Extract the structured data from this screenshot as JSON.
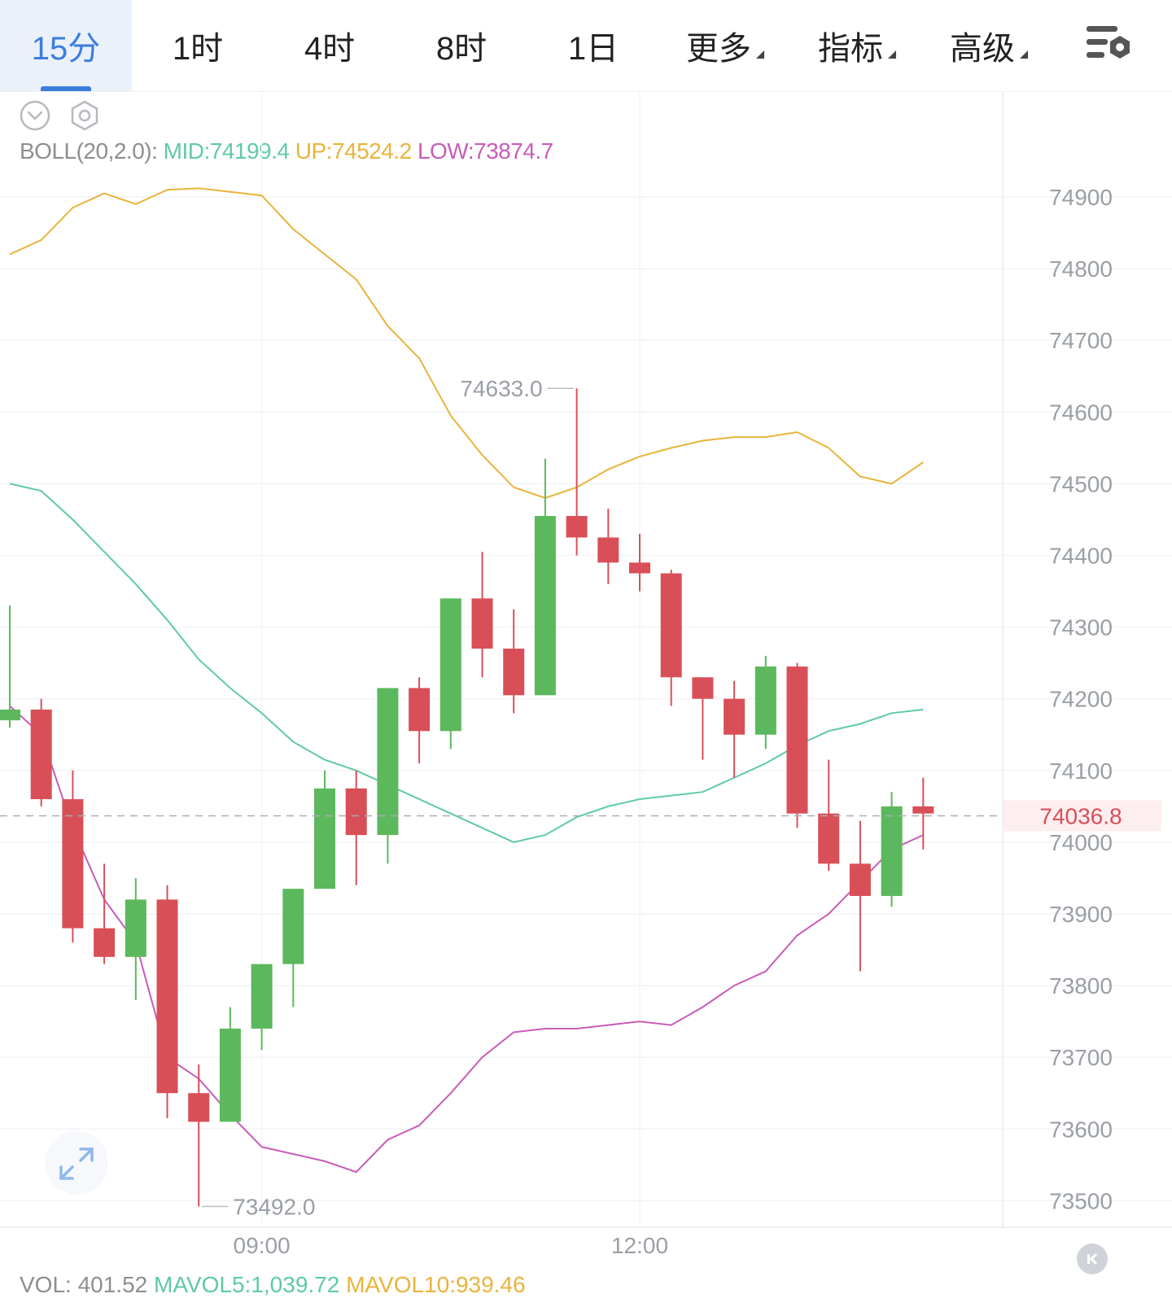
{
  "tabs": [
    {
      "label": "15分",
      "active": true
    },
    {
      "label": "1时"
    },
    {
      "label": "4时"
    },
    {
      "label": "8时"
    },
    {
      "label": "1日"
    },
    {
      "label": "更多",
      "dropdown": true
    },
    {
      "label": "指标",
      "dropdown": true
    },
    {
      "label": "高级",
      "dropdown": true
    }
  ],
  "icons": {
    "collapse": "chevron-down-circle-icon",
    "indicator_settings": "hexagon-gear-icon",
    "chart_settings": "list-gear-icon",
    "expand": "expand-arrows-icon",
    "back_to_latest": "skip-back-icon"
  },
  "indicator": {
    "name": "BOLL(20,2.0):",
    "mid": "MID:74199.4",
    "up": "UP:74524.2",
    "low": "LOW:73874.7"
  },
  "volume": {
    "name": "VOL: 401.52",
    "ma5": "MAVOL5:1,039.72",
    "ma10": "MAVOL10:939.46"
  },
  "chart_data": {
    "type": "candlestick",
    "ylim": [
      73460,
      74980
    ],
    "y_ticks": [
      74900,
      74800,
      74700,
      74600,
      74500,
      74400,
      74300,
      74200,
      74100,
      74000,
      73900,
      73800,
      73700,
      73600,
      73500
    ],
    "x_tick_labels": [
      {
        "label": "09:00",
        "index": 8
      },
      {
        "label": "12:00",
        "index": 20
      }
    ],
    "last_price": "74036.8",
    "high_label": {
      "value": "74633.0",
      "index": 18
    },
    "low_label": {
      "value": "73492.0",
      "index": 6
    },
    "candles": [
      {
        "o": 74170,
        "h": 74330,
        "l": 74160,
        "c": 74185
      },
      {
        "o": 74185,
        "h": 74200,
        "l": 74050,
        "c": 74060
      },
      {
        "o": 74060,
        "h": 74100,
        "l": 73860,
        "c": 73880
      },
      {
        "o": 73880,
        "h": 73970,
        "l": 73830,
        "c": 73840
      },
      {
        "o": 73840,
        "h": 73950,
        "l": 73780,
        "c": 73920
      },
      {
        "o": 73920,
        "h": 73940,
        "l": 73615,
        "c": 73650
      },
      {
        "o": 73650,
        "h": 73690,
        "l": 73492,
        "c": 73610
      },
      {
        "o": 73610,
        "h": 73770,
        "l": 73610,
        "c": 73740
      },
      {
        "o": 73740,
        "h": 73830,
        "l": 73710,
        "c": 73830
      },
      {
        "o": 73830,
        "h": 73920,
        "l": 73770,
        "c": 73935
      },
      {
        "o": 73935,
        "h": 74100,
        "l": 73935,
        "c": 74075
      },
      {
        "o": 74075,
        "h": 74100,
        "l": 73940,
        "c": 74010
      },
      {
        "o": 74010,
        "h": 74210,
        "l": 73970,
        "c": 74215
      },
      {
        "o": 74215,
        "h": 74230,
        "l": 74110,
        "c": 74155
      },
      {
        "o": 74155,
        "h": 74340,
        "l": 74130,
        "c": 74340
      },
      {
        "o": 74340,
        "h": 74405,
        "l": 74230,
        "c": 74270
      },
      {
        "o": 74270,
        "h": 74325,
        "l": 74180,
        "c": 74205
      },
      {
        "o": 74205,
        "h": 74535,
        "l": 74205,
        "c": 74455
      },
      {
        "o": 74455,
        "h": 74633,
        "l": 74400,
        "c": 74425
      },
      {
        "o": 74425,
        "h": 74465,
        "l": 74360,
        "c": 74390
      },
      {
        "o": 74390,
        "h": 74430,
        "l": 74350,
        "c": 74375
      },
      {
        "o": 74375,
        "h": 74380,
        "l": 74190,
        "c": 74230
      },
      {
        "o": 74230,
        "h": 74230,
        "l": 74115,
        "c": 74200
      },
      {
        "o": 74200,
        "h": 74225,
        "l": 74090,
        "c": 74150
      },
      {
        "o": 74150,
        "h": 74260,
        "l": 74130,
        "c": 74245
      },
      {
        "o": 74245,
        "h": 74250,
        "l": 74020,
        "c": 74040
      },
      {
        "o": 74040,
        "h": 74115,
        "l": 73960,
        "c": 73970
      },
      {
        "o": 73970,
        "h": 74030,
        "l": 73820,
        "c": 73925
      },
      {
        "o": 73925,
        "h": 74070,
        "l": 73910,
        "c": 74050
      },
      {
        "o": 74050,
        "h": 74090,
        "l": 73990,
        "c": 74040
      }
    ],
    "boll_up": [
      74820,
      74840,
      74885,
      74905,
      74890,
      74910,
      74912,
      74907,
      74902,
      74855,
      74820,
      74785,
      74720,
      74675,
      74595,
      74540,
      74495,
      74480,
      74495,
      74520,
      74538,
      74550,
      74560,
      74565,
      74565,
      74572,
      74550,
      74510,
      74500,
      74530
    ],
    "boll_mid": [
      74500,
      74490,
      74450,
      74405,
      74360,
      74310,
      74255,
      74215,
      74180,
      74140,
      74115,
      74100,
      74080,
      74060,
      74040,
      74020,
      74000,
      74010,
      74035,
      74050,
      74060,
      74065,
      74070,
      74090,
      74110,
      74135,
      74155,
      74165,
      74180,
      74185
    ],
    "boll_low": [
      74190,
      74150,
      74020,
      73920,
      73860,
      73700,
      73670,
      73620,
      73575,
      73565,
      73555,
      73540,
      73585,
      73605,
      73650,
      73700,
      73735,
      73740,
      73740,
      73745,
      73750,
      73745,
      73770,
      73800,
      73820,
      73870,
      73900,
      73945,
      73990,
      74010
    ]
  }
}
